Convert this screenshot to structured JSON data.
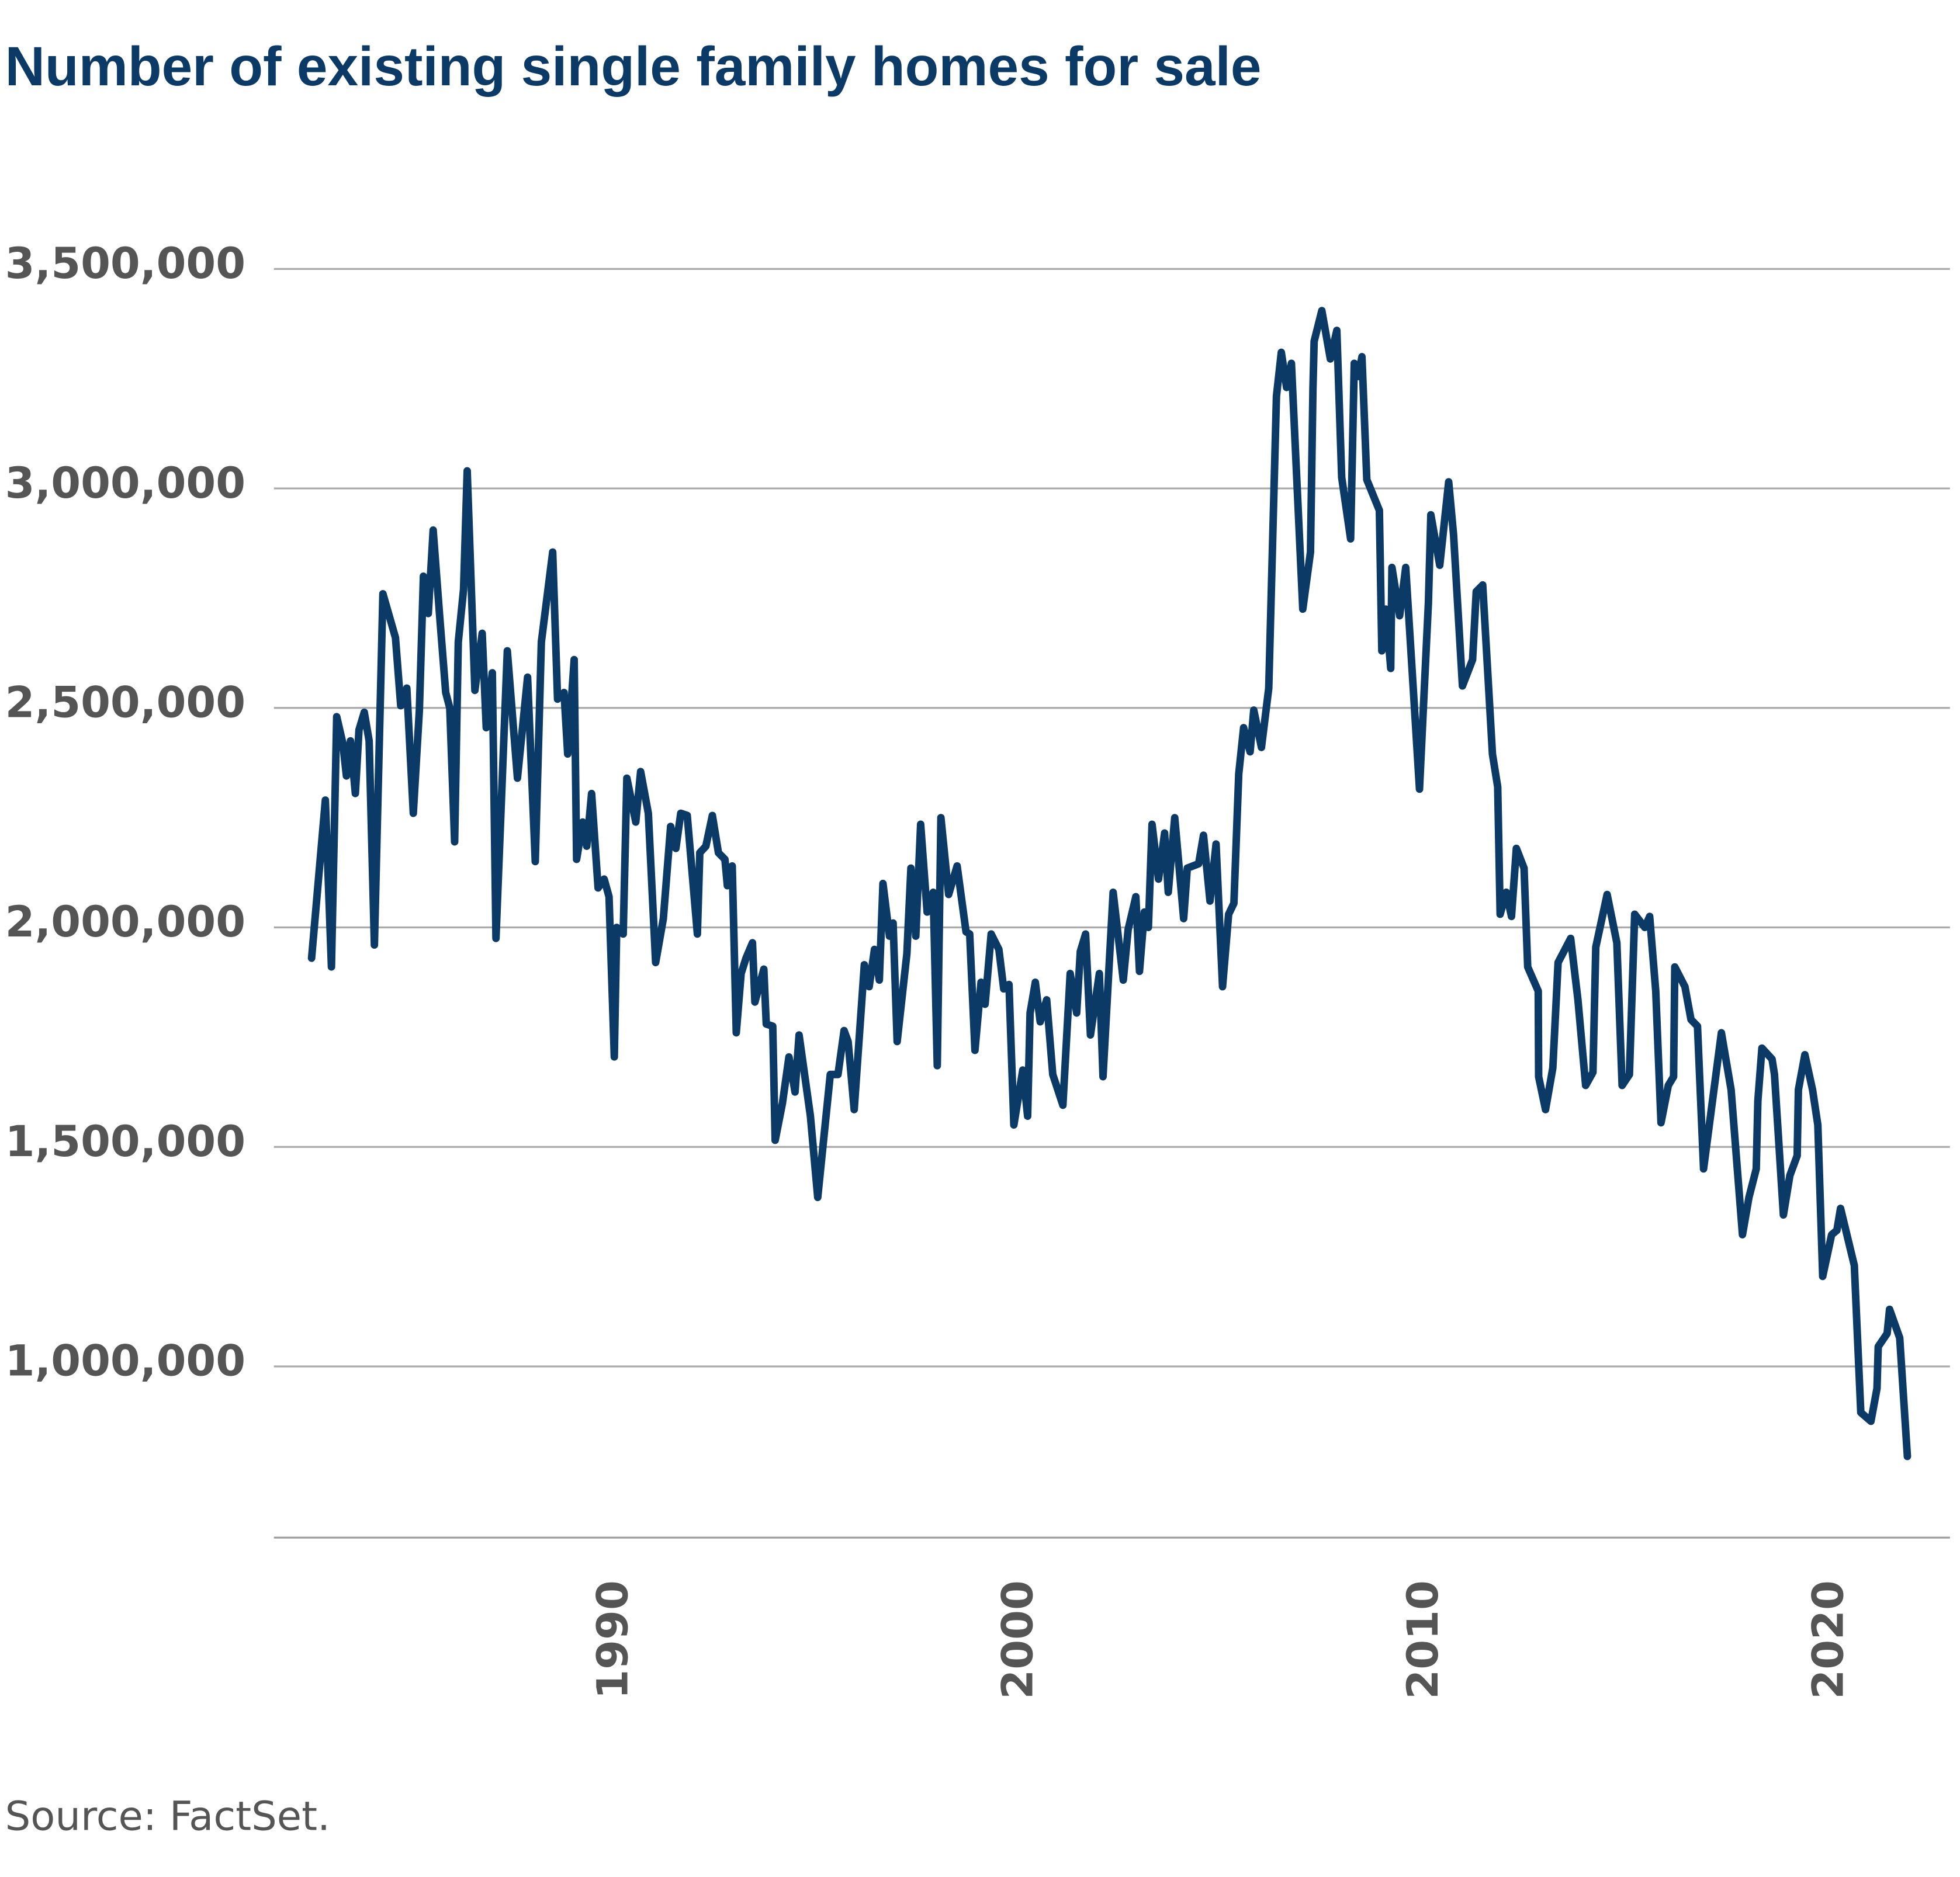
{
  "chart_data": {
    "type": "line",
    "title": "Number of existing single family homes for sale",
    "source": "Source: FactSet.",
    "x": [
      1982.5,
      1982.84,
      1982.99,
      1983.12,
      1983.27,
      1983.36,
      1983.46,
      1983.58,
      1983.67,
      1983.8,
      1983.92,
      1984.05,
      1984.26,
      1984.57,
      1984.7,
      1984.85,
      1985.01,
      1985.16,
      1985.26,
      1985.38,
      1985.5,
      1985.66,
      1985.81,
      1985.91,
      1986.03,
      1986.12,
      1986.25,
      1986.34,
      1986.53,
      1986.71,
      1986.81,
      1986.96,
      1987.05,
      1987.33,
      1987.58,
      1987.83,
      1988.02,
      1988.17,
      1988.45,
      1988.57,
      1988.73,
      1988.82,
      1988.98,
      1989.04,
      1989.19,
      1989.29,
      1989.41,
      1989.57,
      1989.72,
      1989.84,
      1989.97,
      1990.03,
      1990.19,
      1990.28,
      1990.5,
      1990.62,
      1990.81,
      1990.99,
      1991.18,
      1991.36,
      1991.49,
      1991.61,
      1991.77,
      1992.02,
      1992.08,
      1992.23,
      1992.39,
      1992.54,
      1992.7,
      1992.76,
      1992.88,
      1992.98,
      1993.1,
      1993.22,
      1993.38,
      1993.44,
      1993.66,
      1993.72,
      1993.88,
      1993.94,
      1994.12,
      1994.28,
      1994.43,
      1994.53,
      1994.81,
      1994.99,
      1995.3,
      1995.49,
      1995.64,
      1995.74,
      1995.89,
      1996.14,
      1996.26,
      1996.39,
      1996.51,
      1996.6,
      1996.76,
      1996.85,
      1996.95,
      1997.19,
      1997.29,
      1997.41,
      1997.53,
      1997.69,
      1997.84,
      1997.94,
      1998.03,
      1998.22,
      1998.43,
      1998.65,
      1998.74,
      1998.87,
      1999.02,
      1999.12,
      1999.27,
      1999.46,
      1999.58,
      1999.71,
      1999.83,
      2000.05,
      2000.17,
      2000.23,
      2000.36,
      2000.48,
      2000.64,
      2000.79,
      2001.04,
      2001.22,
      2001.38,
      2001.47,
      2001.6,
      2001.72,
      2001.94,
      2002.03,
      2002.28,
      2002.53,
      2002.65,
      2002.84,
      2002.93,
      2003.05,
      2003.15,
      2003.24,
      2003.4,
      2003.55,
      2003.64,
      2003.8,
      2004.02,
      2004.11,
      2004.39,
      2004.51,
      2004.67,
      2004.82,
      2004.98,
      2005.13,
      2005.26,
      2005.38,
      2005.5,
      2005.66,
      2005.75,
      2005.94,
      2006.12,
      2006.31,
      2006.43,
      2006.56,
      2006.68,
      2006.96,
      2007.15,
      2007.21,
      2007.24,
      2007.43,
      2007.64,
      2007.8,
      2007.92,
      2008.14,
      2008.23,
      2008.33,
      2008.42,
      2008.54,
      2008.85,
      2008.91,
      2009.01,
      2009.13,
      2009.16,
      2009.35,
      2009.5,
      2009.84,
      2010.06,
      2010.12,
      2010.34,
      2010.56,
      2010.68,
      2010.9,
      2011.15,
      2011.24,
      2011.4,
      2011.64,
      2011.77,
      2011.83,
      2011.98,
      2012.11,
      2012.23,
      2012.42,
      2012.51,
      2012.77,
      2012.78,
      2012.95,
      2013.13,
      2013.26,
      2013.57,
      2013.75,
      2013.94,
      2014.12,
      2014.19,
      2014.47,
      2014.71,
      2014.84,
      2015.02,
      2015.15,
      2015.4,
      2015.52,
      2015.67,
      2015.8,
      2015.98,
      2016.11,
      2016.14,
      2016.39,
      2016.54,
      2016.7,
      2016.85,
      2017.29,
      2017.53,
      2017.81,
      2017.97,
      2018.15,
      2018.19,
      2018.29,
      2018.54,
      2018.6,
      2018.82,
      2018.98,
      2019.16,
      2019.19,
      2019.35,
      2019.54,
      2019.67,
      2019.79,
      2020.01,
      2020.14,
      2020.23,
      2020.57,
      2020.73,
      2020.98,
      2021.13,
      2021.16,
      2021.38,
      2021.44,
      2021.69,
      2021.88
    ],
    "series": [
      {
        "name": "Homes for sale",
        "color": "#0b3a66",
        "values": [
          1930000,
          2290000,
          1910000,
          2480000,
          2420000,
          2345000,
          2425000,
          2305000,
          2450000,
          2490000,
          2425000,
          1960000,
          2760000,
          2660000,
          2505000,
          2545000,
          2260000,
          2495000,
          2800000,
          2715000,
          2905000,
          2710000,
          2535000,
          2500000,
          2195000,
          2650000,
          2770000,
          3040000,
          2540000,
          2670000,
          2455000,
          2580000,
          1975000,
          2630000,
          2340000,
          2570000,
          2150000,
          2650000,
          2855000,
          2520000,
          2535000,
          2395000,
          2610000,
          2155000,
          2240000,
          2185000,
          2305000,
          2090000,
          2110000,
          2070000,
          1705000,
          2000000,
          1985000,
          2340000,
          2240000,
          2355000,
          2260000,
          1920000,
          2020000,
          2230000,
          2180000,
          2260000,
          2255000,
          1985000,
          2170000,
          2185000,
          2255000,
          2170000,
          2155000,
          2095000,
          2140000,
          1760000,
          1895000,
          1930000,
          1965000,
          1830000,
          1905000,
          1780000,
          1775000,
          1515000,
          1600000,
          1705000,
          1625000,
          1755000,
          1570000,
          1385000,
          1665000,
          1665000,
          1765000,
          1740000,
          1585000,
          1915000,
          1865000,
          1950000,
          1880000,
          2100000,
          1980000,
          2010000,
          1740000,
          1940000,
          2135000,
          1980000,
          2235000,
          2035000,
          2080000,
          1685000,
          2250000,
          2075000,
          2140000,
          1990000,
          1985000,
          1720000,
          1875000,
          1825000,
          1985000,
          1950000,
          1860000,
          1870000,
          1550000,
          1675000,
          1570000,
          1805000,
          1875000,
          1785000,
          1835000,
          1665000,
          1595000,
          1895000,
          1805000,
          1945000,
          1985000,
          1755000,
          1895000,
          1660000,
          2080000,
          1880000,
          1995000,
          2070000,
          1900000,
          2035000,
          2000000,
          2235000,
          2110000,
          2215000,
          2080000,
          2250000,
          2020000,
          2135000,
          2145000,
          2210000,
          2060000,
          2190000,
          1865000,
          2030000,
          2055000,
          2350000,
          2455000,
          2400000,
          2495000,
          2410000,
          2545000,
          3210000,
          3310000,
          3230000,
          3285000,
          2725000,
          2855000,
          3225000,
          3335000,
          3405000,
          3295000,
          3360000,
          3025000,
          2885000,
          3285000,
          3255000,
          3300000,
          3020000,
          2950000,
          2630000,
          2725000,
          2590000,
          2820000,
          2710000,
          2820000,
          2315000,
          2740000,
          2940000,
          2825000,
          3015000,
          2895000,
          2550000,
          2610000,
          2765000,
          2780000,
          2395000,
          2320000,
          2030000,
          2080000,
          2025000,
          2180000,
          2135000,
          1910000,
          1855000,
          1660000,
          1585000,
          1680000,
          1920000,
          1975000,
          1835000,
          1640000,
          1670000,
          1955000,
          2075000,
          1965000,
          1640000,
          1665000,
          2030000,
          2000000,
          2025000,
          1855000,
          1555000,
          1640000,
          1660000,
          1910000,
          1865000,
          1790000,
          1775000,
          1450000,
          1760000,
          1630000,
          1300000,
          1385000,
          1450000,
          1605000,
          1725000,
          1700000,
          1665000,
          1345000,
          1435000,
          1480000,
          1630000,
          1710000,
          1630000,
          1550000,
          1205000,
          1300000,
          1310000,
          1360000,
          1230000,
          895000,
          875000,
          950000,
          1045000,
          1075000,
          1130000,
          1065000,
          795000
        ]
      }
    ],
    "xlim": [
      1981.57,
      2022.93
    ],
    "xticks": [
      1990,
      2000,
      2010,
      2020
    ],
    "ylim": [
      610000,
      3700000
    ],
    "yticks": [
      {
        "value": 1000000,
        "label": "1,000,000"
      },
      {
        "value": 1500000,
        "label": "1,500,000"
      },
      {
        "value": 2000000,
        "label": "2,000,000"
      },
      {
        "value": 2500000,
        "label": "2,500,000"
      },
      {
        "value": 3000000,
        "label": "3,000,000"
      },
      {
        "value": 3500000,
        "label": "3,500,000"
      }
    ],
    "grid": true
  }
}
